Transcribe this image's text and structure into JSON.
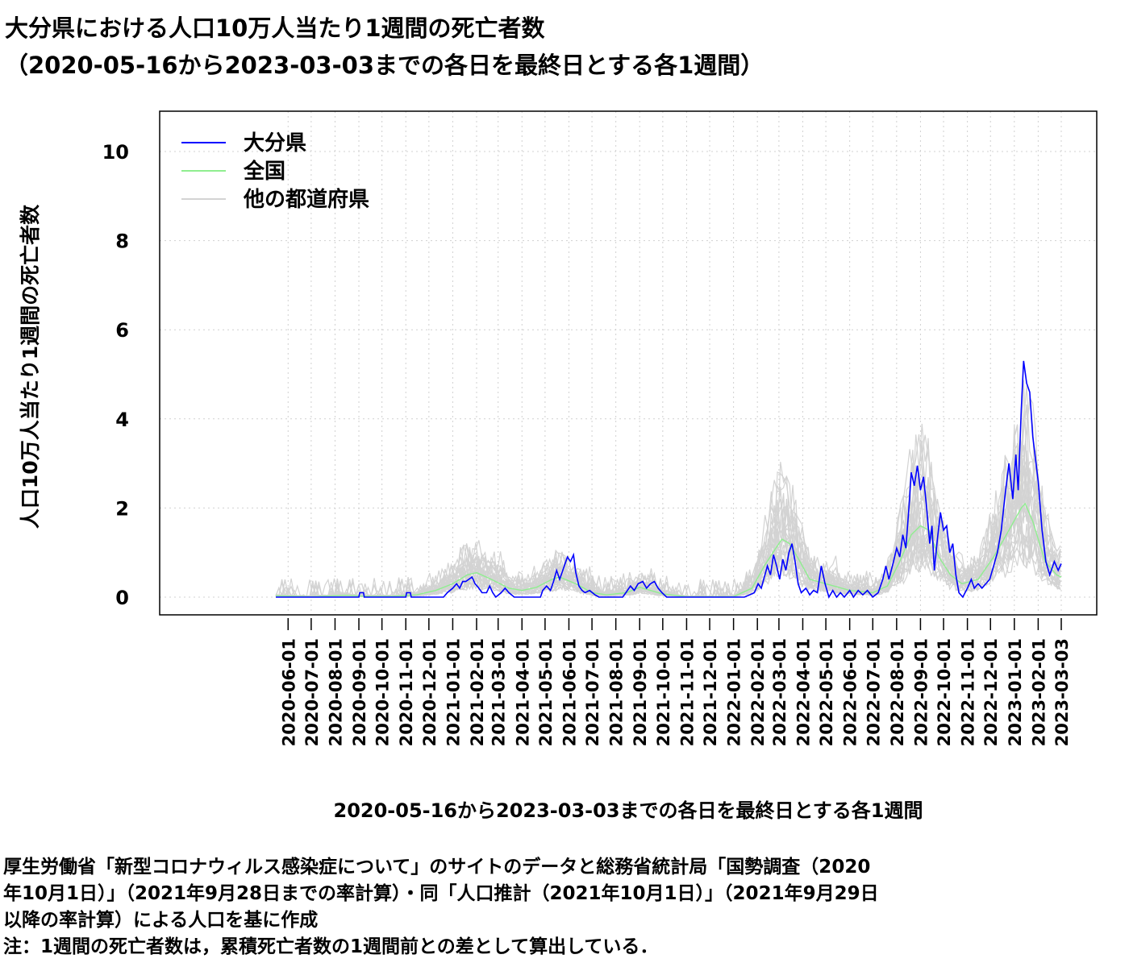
{
  "chart_data": {
    "type": "line",
    "title": "大分県における人口10万人当たり1週間の死亡者数",
    "subtitle": "（2020-05-16から2023-03-03までの各日を最終日とする各1週間）",
    "xlabel": "2020-05-16から2023-03-03までの各日を最終日とする各1週間",
    "ylabel": "人口10万人当たり1週間の死亡者数",
    "xlim": [
      "2020-05-16",
      "2023-03-03"
    ],
    "ylim": [
      0,
      10.5
    ],
    "yticks": [
      0,
      2,
      4,
      6,
      8,
      10
    ],
    "xticks": [
      "2020-06-01",
      "2020-07-01",
      "2020-08-01",
      "2020-09-01",
      "2020-10-01",
      "2020-11-01",
      "2020-12-01",
      "2021-01-01",
      "2021-02-01",
      "2021-03-01",
      "2021-04-01",
      "2021-05-01",
      "2021-06-01",
      "2021-07-01",
      "2021-08-01",
      "2021-09-01",
      "2021-10-01",
      "2021-11-01",
      "2021-12-01",
      "2022-01-01",
      "2022-02-01",
      "2022-03-01",
      "2022-04-01",
      "2022-05-01",
      "2022-06-01",
      "2022-07-01",
      "2022-08-01",
      "2022-09-01",
      "2022-10-01",
      "2022-11-01",
      "2022-12-01",
      "2023-01-01",
      "2023-02-01",
      "2023-03-03"
    ],
    "grid": true,
    "legend_position": "top-left",
    "series": [
      {
        "name": "大分県",
        "color": "#0000ff",
        "points": [
          [
            "2020-05-16",
            0
          ],
          [
            "2020-09-01",
            0
          ],
          [
            "2020-09-02",
            0.1
          ],
          [
            "2020-09-07",
            0.1
          ],
          [
            "2020-09-08",
            0
          ],
          [
            "2020-11-01",
            0
          ],
          [
            "2020-11-02",
            0.1
          ],
          [
            "2020-11-07",
            0.1
          ],
          [
            "2020-11-08",
            0
          ],
          [
            "2020-12-20",
            0
          ],
          [
            "2020-12-25",
            0.1
          ],
          [
            "2021-01-01",
            0.2
          ],
          [
            "2021-01-06",
            0.3
          ],
          [
            "2021-01-10",
            0.2
          ],
          [
            "2021-01-14",
            0.35
          ],
          [
            "2021-01-18",
            0.35
          ],
          [
            "2021-01-22",
            0.4
          ],
          [
            "2021-01-26",
            0.45
          ],
          [
            "2021-01-30",
            0.3
          ],
          [
            "2021-02-04",
            0.2
          ],
          [
            "2021-02-08",
            0.1
          ],
          [
            "2021-02-14",
            0.1
          ],
          [
            "2021-02-18",
            0.25
          ],
          [
            "2021-02-22",
            0.1
          ],
          [
            "2021-02-26",
            0
          ],
          [
            "2021-03-05",
            0.1
          ],
          [
            "2021-03-10",
            0.2
          ],
          [
            "2021-03-15",
            0.1
          ],
          [
            "2021-03-22",
            0
          ],
          [
            "2021-04-25",
            0
          ],
          [
            "2021-04-28",
            0.15
          ],
          [
            "2021-05-03",
            0.25
          ],
          [
            "2021-05-08",
            0.15
          ],
          [
            "2021-05-12",
            0.35
          ],
          [
            "2021-05-16",
            0.6
          ],
          [
            "2021-05-20",
            0.4
          ],
          [
            "2021-05-25",
            0.65
          ],
          [
            "2021-05-30",
            0.9
          ],
          [
            "2021-06-03",
            0.8
          ],
          [
            "2021-06-07",
            0.95
          ],
          [
            "2021-06-10",
            0.55
          ],
          [
            "2021-06-14",
            0.25
          ],
          [
            "2021-06-18",
            0.15
          ],
          [
            "2021-06-22",
            0.1
          ],
          [
            "2021-06-28",
            0.15
          ],
          [
            "2021-07-05",
            0.05
          ],
          [
            "2021-07-10",
            0
          ],
          [
            "2021-08-10",
            0
          ],
          [
            "2021-08-14",
            0.1
          ],
          [
            "2021-08-20",
            0.25
          ],
          [
            "2021-08-25",
            0.15
          ],
          [
            "2021-08-30",
            0.3
          ],
          [
            "2021-09-05",
            0.35
          ],
          [
            "2021-09-10",
            0.2
          ],
          [
            "2021-09-15",
            0.3
          ],
          [
            "2021-09-20",
            0.35
          ],
          [
            "2021-09-25",
            0.2
          ],
          [
            "2021-09-30",
            0.1
          ],
          [
            "2021-10-06",
            0
          ],
          [
            "2022-01-15",
            0
          ],
          [
            "2022-01-22",
            0.05
          ],
          [
            "2022-01-28",
            0.1
          ],
          [
            "2022-02-02",
            0.3
          ],
          [
            "2022-02-06",
            0.2
          ],
          [
            "2022-02-10",
            0.45
          ],
          [
            "2022-02-14",
            0.7
          ],
          [
            "2022-02-18",
            0.5
          ],
          [
            "2022-02-22",
            0.95
          ],
          [
            "2022-02-26",
            0.7
          ],
          [
            "2022-03-02",
            0.4
          ],
          [
            "2022-03-06",
            0.85
          ],
          [
            "2022-03-10",
            0.6
          ],
          [
            "2022-03-14",
            1.0
          ],
          [
            "2022-03-18",
            1.2
          ],
          [
            "2022-03-22",
            0.8
          ],
          [
            "2022-03-26",
            0.3
          ],
          [
            "2022-03-30",
            0.1
          ],
          [
            "2022-04-05",
            0.2
          ],
          [
            "2022-04-10",
            0.05
          ],
          [
            "2022-04-15",
            0.15
          ],
          [
            "2022-04-20",
            0.1
          ],
          [
            "2022-04-25",
            0.7
          ],
          [
            "2022-04-30",
            0.3
          ],
          [
            "2022-05-05",
            0
          ],
          [
            "2022-05-10",
            0.15
          ],
          [
            "2022-05-15",
            0
          ],
          [
            "2022-05-20",
            0.1
          ],
          [
            "2022-05-25",
            0
          ],
          [
            "2022-06-01",
            0.15
          ],
          [
            "2022-06-06",
            0
          ],
          [
            "2022-06-12",
            0.15
          ],
          [
            "2022-06-18",
            0.05
          ],
          [
            "2022-06-24",
            0.15
          ],
          [
            "2022-07-01",
            0
          ],
          [
            "2022-07-08",
            0.1
          ],
          [
            "2022-07-14",
            0.4
          ],
          [
            "2022-07-18",
            0.7
          ],
          [
            "2022-07-22",
            0.4
          ],
          [
            "2022-07-28",
            0.8
          ],
          [
            "2022-08-01",
            1.1
          ],
          [
            "2022-08-05",
            0.9
          ],
          [
            "2022-08-09",
            1.4
          ],
          [
            "2022-08-13",
            1.1
          ],
          [
            "2022-08-17",
            2.0
          ],
          [
            "2022-08-20",
            2.8
          ],
          [
            "2022-08-24",
            2.5
          ],
          [
            "2022-08-28",
            2.95
          ],
          [
            "2022-09-01",
            2.4
          ],
          [
            "2022-09-05",
            2.7
          ],
          [
            "2022-09-09",
            2.0
          ],
          [
            "2022-09-13",
            1.2
          ],
          [
            "2022-09-16",
            1.6
          ],
          [
            "2022-09-19",
            0.6
          ],
          [
            "2022-09-23",
            1.3
          ],
          [
            "2022-09-27",
            1.9
          ],
          [
            "2022-10-01",
            1.5
          ],
          [
            "2022-10-05",
            1.6
          ],
          [
            "2022-10-09",
            1.0
          ],
          [
            "2022-10-13",
            1.2
          ],
          [
            "2022-10-17",
            0.5
          ],
          [
            "2022-10-21",
            0.1
          ],
          [
            "2022-10-26",
            0
          ],
          [
            "2022-11-01",
            0.2
          ],
          [
            "2022-11-06",
            0.4
          ],
          [
            "2022-11-10",
            0.2
          ],
          [
            "2022-11-15",
            0.3
          ],
          [
            "2022-11-20",
            0.2
          ],
          [
            "2022-11-25",
            0.3
          ],
          [
            "2022-11-30",
            0.4
          ],
          [
            "2022-12-05",
            0.7
          ],
          [
            "2022-12-10",
            1.0
          ],
          [
            "2022-12-15",
            1.5
          ],
          [
            "2022-12-20",
            2.3
          ],
          [
            "2022-12-25",
            3.0
          ],
          [
            "2022-12-30",
            2.2
          ],
          [
            "2023-01-03",
            3.2
          ],
          [
            "2023-01-06",
            2.4
          ],
          [
            "2023-01-10",
            4.2
          ],
          [
            "2023-01-13",
            5.3
          ],
          [
            "2023-01-17",
            4.8
          ],
          [
            "2023-01-21",
            4.6
          ],
          [
            "2023-01-25",
            3.6
          ],
          [
            "2023-02-01",
            2.6
          ],
          [
            "2023-02-06",
            1.5
          ],
          [
            "2023-02-11",
            0.8
          ],
          [
            "2023-02-16",
            0.5
          ],
          [
            "2023-02-22",
            0.8
          ],
          [
            "2023-02-27",
            0.6
          ],
          [
            "2023-03-03",
            0.75
          ]
        ]
      },
      {
        "name": "全国",
        "color": "#90ee90",
        "points": [
          [
            "2020-05-16",
            0.03
          ],
          [
            "2020-07-01",
            0.01
          ],
          [
            "2020-08-15",
            0.04
          ],
          [
            "2020-09-10",
            0.02
          ],
          [
            "2020-10-15",
            0.02
          ],
          [
            "2020-11-15",
            0.05
          ],
          [
            "2020-12-10",
            0.15
          ],
          [
            "2021-01-01",
            0.3
          ],
          [
            "2021-01-20",
            0.5
          ],
          [
            "2021-02-01",
            0.55
          ],
          [
            "2021-02-20",
            0.4
          ],
          [
            "2021-03-15",
            0.2
          ],
          [
            "2021-04-01",
            0.15
          ],
          [
            "2021-04-20",
            0.22
          ],
          [
            "2021-05-10",
            0.4
          ],
          [
            "2021-05-20",
            0.45
          ],
          [
            "2021-06-10",
            0.3
          ],
          [
            "2021-07-01",
            0.1
          ],
          [
            "2021-07-20",
            0.05
          ],
          [
            "2021-08-15",
            0.1
          ],
          [
            "2021-09-01",
            0.22
          ],
          [
            "2021-09-15",
            0.15
          ],
          [
            "2021-10-01",
            0.07
          ],
          [
            "2021-11-01",
            0.01
          ],
          [
            "2022-01-01",
            0.01
          ],
          [
            "2022-01-25",
            0.2
          ],
          [
            "2022-02-10",
            0.7
          ],
          [
            "2022-02-25",
            1.1
          ],
          [
            "2022-03-05",
            1.3
          ],
          [
            "2022-03-15",
            1.2
          ],
          [
            "2022-03-25",
            0.9
          ],
          [
            "2022-04-10",
            0.4
          ],
          [
            "2022-05-01",
            0.3
          ],
          [
            "2022-06-01",
            0.15
          ],
          [
            "2022-07-01",
            0.1
          ],
          [
            "2022-07-20",
            0.25
          ],
          [
            "2022-08-05",
            0.8
          ],
          [
            "2022-08-20",
            1.4
          ],
          [
            "2022-09-01",
            1.6
          ],
          [
            "2022-09-12",
            1.5
          ],
          [
            "2022-09-25",
            0.9
          ],
          [
            "2022-10-10",
            0.5
          ],
          [
            "2022-10-25",
            0.3
          ],
          [
            "2022-11-15",
            0.4
          ],
          [
            "2022-12-05",
            0.9
          ],
          [
            "2022-12-25",
            1.5
          ],
          [
            "2023-01-10",
            2.0
          ],
          [
            "2023-01-15",
            2.1
          ],
          [
            "2023-01-25",
            1.7
          ],
          [
            "2023-02-10",
            0.8
          ],
          [
            "2023-02-25",
            0.5
          ],
          [
            "2023-03-03",
            0.45
          ]
        ]
      }
    ],
    "others": {
      "name": "他の都道府県",
      "color": "#d3d3d3"
    }
  },
  "footer": {
    "line1": "厚生労働省「新型コロナウィルス感染症について」のサイトのデータと総務省統計局「国勢調査（2020",
    "line2": "年10月1日）」（2021年9月28日までの率計算）・同「人口推計（2021年10月1日）」（2021年9月29日",
    "line3": "以降の率計算）による人口を基に作成",
    "line4": "注：1週間の死亡者数は，累積死亡者数の1週間前との差として算出している．"
  }
}
